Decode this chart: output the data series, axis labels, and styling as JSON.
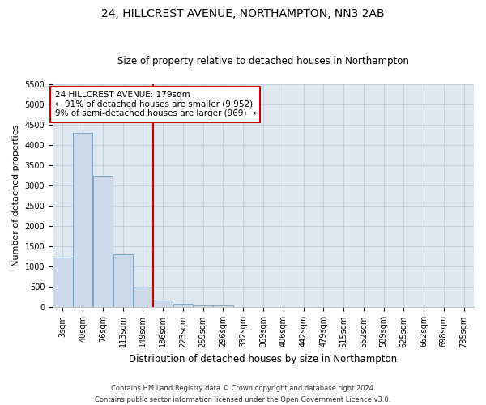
{
  "title": "24, HILLCREST AVENUE, NORTHAMPTON, NN3 2AB",
  "subtitle": "Size of property relative to detached houses in Northampton",
  "xlabel": "Distribution of detached houses by size in Northampton",
  "ylabel": "Number of detached properties",
  "footer_line1": "Contains HM Land Registry data © Crown copyright and database right 2024.",
  "footer_line2": "Contains public sector information licensed under the Open Government Licence v3.0.",
  "annotation_line1": "24 HILLCREST AVENUE: 179sqm",
  "annotation_line2": "← 91% of detached houses are smaller (9,952)",
  "annotation_line3": "9% of semi-detached houses are larger (969) →",
  "bar_color": "#ccdaeb",
  "bar_edge_color": "#6b9dc2",
  "vline_color": "#cc0000",
  "vline_x": 4.5,
  "annotation_box_color": "#ffffff",
  "annotation_box_edge": "#cc0000",
  "background_color": "#ffffff",
  "plot_bg_color": "#dde8f0",
  "grid_color": "#b8c8d8",
  "categories": [
    "3sqm",
    "40sqm",
    "76sqm",
    "113sqm",
    "149sqm",
    "186sqm",
    "223sqm",
    "259sqm",
    "296sqm",
    "332sqm",
    "369sqm",
    "406sqm",
    "442sqm",
    "479sqm",
    "515sqm",
    "552sqm",
    "589sqm",
    "625sqm",
    "662sqm",
    "698sqm",
    "735sqm"
  ],
  "values": [
    1220,
    4300,
    3250,
    1300,
    480,
    170,
    80,
    55,
    45,
    0,
    0,
    0,
    0,
    0,
    0,
    0,
    0,
    0,
    0,
    0,
    0
  ],
  "ylim": [
    0,
    5500
  ],
  "yticks": [
    0,
    500,
    1000,
    1500,
    2000,
    2500,
    3000,
    3500,
    4000,
    4500,
    5000,
    5500
  ],
  "title_fontsize": 10,
  "subtitle_fontsize": 8.5,
  "ylabel_fontsize": 8,
  "xlabel_fontsize": 8.5,
  "tick_fontsize": 7,
  "annotation_fontsize": 7.5,
  "footer_fontsize": 6
}
